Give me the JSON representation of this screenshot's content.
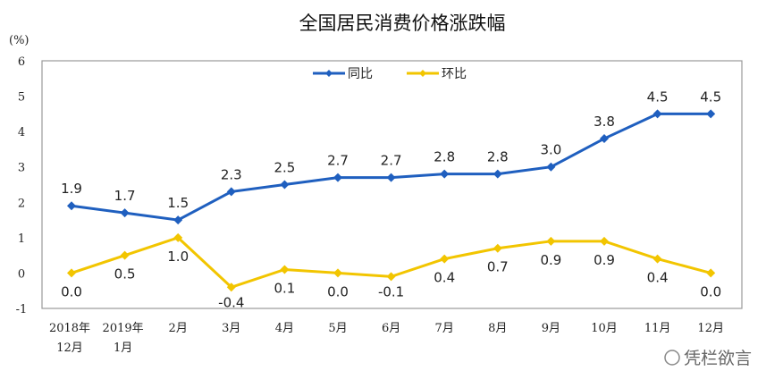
{
  "chart_data": {
    "type": "line",
    "title": "全国居民消费价格涨跌幅",
    "ylabel": "(%)",
    "xlabel": "",
    "ylim": [
      -1,
      6
    ],
    "yticks": [
      "6",
      "5",
      "4",
      "3",
      "2",
      "1",
      "0",
      "-1"
    ],
    "categories": [
      [
        "2018年",
        "12月"
      ],
      [
        "2019年",
        "1月"
      ],
      [
        "2月"
      ],
      [
        "3月"
      ],
      [
        "4月"
      ],
      [
        "5月"
      ],
      [
        "6月"
      ],
      [
        "7月"
      ],
      [
        "8月"
      ],
      [
        "9月"
      ],
      [
        "10月"
      ],
      [
        "11月"
      ],
      [
        "12月"
      ]
    ],
    "legend_position": "top-center",
    "series": [
      {
        "name": "同比",
        "color": "#1f5fbf",
        "values": [
          1.9,
          1.7,
          1.5,
          2.3,
          2.5,
          2.7,
          2.7,
          2.8,
          2.8,
          3.0,
          3.8,
          4.5,
          4.5
        ],
        "labels": [
          "1.9",
          "1.7",
          "1.5",
          "2.3",
          "2.5",
          "2.7",
          "2.7",
          "2.8",
          "2.8",
          "3.0",
          "3.8",
          "4.5",
          "4.5"
        ]
      },
      {
        "name": "环比",
        "color": "#f2c500",
        "values": [
          0.0,
          0.5,
          1.0,
          -0.4,
          0.1,
          0.0,
          -0.1,
          0.4,
          0.7,
          0.9,
          0.9,
          0.4,
          0.0
        ],
        "labels": [
          "0.0",
          "0.5",
          "1.0",
          "-0.4",
          "0.1",
          "0.0",
          "-0.1",
          "0.4",
          "0.7",
          "0.9",
          "0.9",
          "0.4",
          "0.0"
        ]
      }
    ]
  },
  "watermark": "凭栏欲言"
}
